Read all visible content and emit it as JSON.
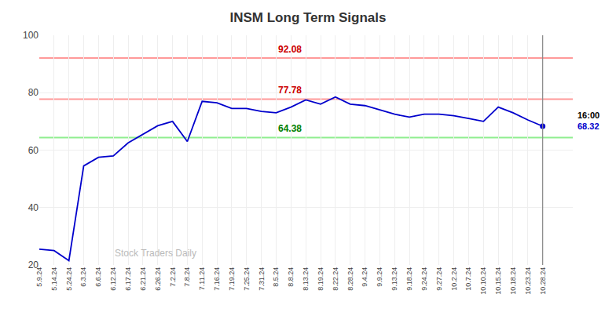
{
  "chart_data": {
    "type": "line",
    "title": "INSM Long Term Signals",
    "categories": [
      "5.9.24",
      "5.14.24",
      "5.24.24",
      "6.3.24",
      "6.6.24",
      "6.12.24",
      "6.17.24",
      "6.21.24",
      "6.26.24",
      "7.2.24",
      "7.8.24",
      "7.11.24",
      "7.16.24",
      "7.19.24",
      "7.25.24",
      "7.31.24",
      "8.5.24",
      "8.8.24",
      "8.13.24",
      "8.19.24",
      "8.22.24",
      "8.28.24",
      "9.4.24",
      "9.9.24",
      "9.13.24",
      "9.18.24",
      "9.24.24",
      "9.27.24",
      "10.2.24",
      "10.7.24",
      "10.10.24",
      "10.15.24",
      "10.18.24",
      "10.23.24",
      "10.28.24"
    ],
    "values": [
      25.5,
      25.0,
      21.5,
      54.5,
      57.5,
      58.0,
      62.5,
      65.5,
      68.5,
      70.0,
      63.0,
      77.0,
      76.5,
      74.5,
      74.5,
      73.5,
      73.0,
      75.0,
      77.5,
      76.0,
      78.5,
      76.0,
      75.5,
      74.0,
      72.5,
      71.5,
      72.5,
      72.5,
      72.0,
      71.0,
      70.0,
      75.0,
      73.0,
      70.5,
      68.32
    ],
    "color": "#0000cc",
    "ylim": [
      20,
      100
    ],
    "yticks": [
      20,
      40,
      60,
      80,
      100
    ],
    "grid": true,
    "hlines": [
      {
        "value": 92.08,
        "label": "92.08",
        "color": "#ff9999",
        "label_color": "#cc0000"
      },
      {
        "value": 77.78,
        "label": "77.78",
        "color": "#ff9999",
        "label_color": "#cc0000"
      },
      {
        "value": 64.38,
        "label": "64.38",
        "color": "#90ee90",
        "label_color": "#008000"
      }
    ],
    "time_label": "16:00",
    "last_value_label": {
      "value": 68.32,
      "label": "68.32",
      "color": "#0000cc"
    },
    "watermark": "Stock Traders Daily"
  }
}
